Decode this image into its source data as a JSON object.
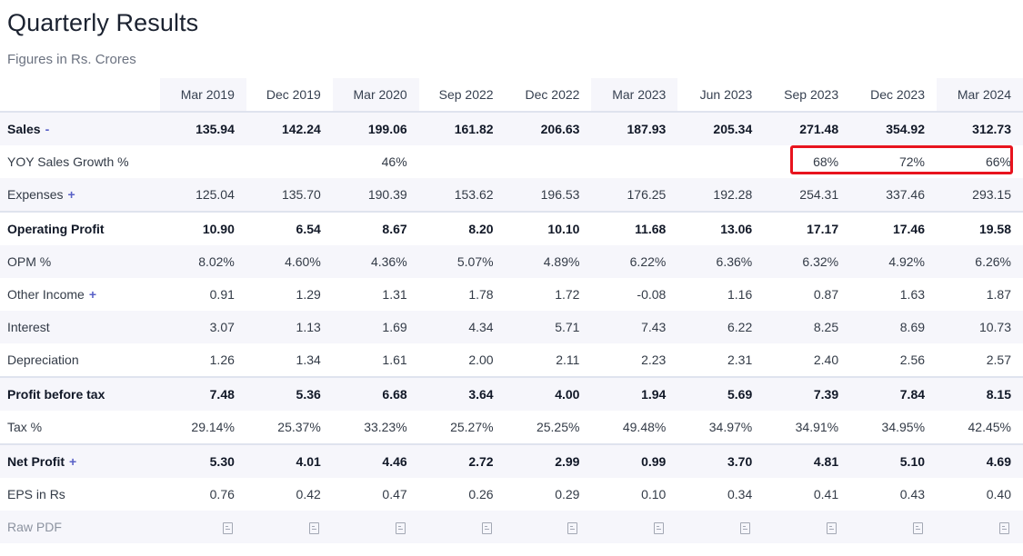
{
  "title": "Quarterly Results",
  "subtitle": "Figures in Rs. Crores",
  "columns": [
    "Mar 2019",
    "Dec 2019",
    "Mar 2020",
    "Sep 2022",
    "Dec 2022",
    "Mar 2023",
    "Jun 2023",
    "Sep 2023",
    "Dec 2023",
    "Mar 2024"
  ],
  "rows": {
    "sales": {
      "label": "Sales",
      "toggle": "-",
      "values": [
        "135.94",
        "142.24",
        "199.06",
        "161.82",
        "206.63",
        "187.93",
        "205.34",
        "271.48",
        "354.92",
        "312.73"
      ]
    },
    "yoy": {
      "label": "YOY Sales Growth %",
      "values": [
        "",
        "",
        "46%",
        "",
        "",
        "",
        "",
        "68%",
        "72%",
        "66%"
      ]
    },
    "expenses": {
      "label": "Expenses",
      "toggle": "+",
      "values": [
        "125.04",
        "135.70",
        "190.39",
        "153.62",
        "196.53",
        "176.25",
        "192.28",
        "254.31",
        "337.46",
        "293.15"
      ]
    },
    "op_profit": {
      "label": "Operating Profit",
      "values": [
        "10.90",
        "6.54",
        "8.67",
        "8.20",
        "10.10",
        "11.68",
        "13.06",
        "17.17",
        "17.46",
        "19.58"
      ]
    },
    "opm": {
      "label": "OPM %",
      "values": [
        "8.02%",
        "4.60%",
        "4.36%",
        "5.07%",
        "4.89%",
        "6.22%",
        "6.36%",
        "6.32%",
        "4.92%",
        "6.26%"
      ]
    },
    "other_income": {
      "label": "Other Income",
      "toggle": "+",
      "values": [
        "0.91",
        "1.29",
        "1.31",
        "1.78",
        "1.72",
        "-0.08",
        "1.16",
        "0.87",
        "1.63",
        "1.87"
      ]
    },
    "interest": {
      "label": "Interest",
      "values": [
        "3.07",
        "1.13",
        "1.69",
        "4.34",
        "5.71",
        "7.43",
        "6.22",
        "8.25",
        "8.69",
        "10.73"
      ]
    },
    "depreciation": {
      "label": "Depreciation",
      "values": [
        "1.26",
        "1.34",
        "1.61",
        "2.00",
        "2.11",
        "2.23",
        "2.31",
        "2.40",
        "2.56",
        "2.57"
      ]
    },
    "pbt": {
      "label": "Profit before tax",
      "values": [
        "7.48",
        "5.36",
        "6.68",
        "3.64",
        "4.00",
        "1.94",
        "5.69",
        "7.39",
        "7.84",
        "8.15"
      ]
    },
    "tax": {
      "label": "Tax %",
      "values": [
        "29.14%",
        "25.37%",
        "33.23%",
        "25.27%",
        "25.25%",
        "49.48%",
        "34.97%",
        "34.91%",
        "34.95%",
        "42.45%"
      ]
    },
    "net_profit": {
      "label": "Net Profit",
      "toggle": "+",
      "values": [
        "5.30",
        "4.01",
        "4.46",
        "2.72",
        "2.99",
        "0.99",
        "3.70",
        "4.81",
        "5.10",
        "4.69"
      ]
    },
    "eps": {
      "label": "EPS in Rs",
      "values": [
        "0.76",
        "0.42",
        "0.47",
        "0.26",
        "0.29",
        "0.10",
        "0.34",
        "0.41",
        "0.43",
        "0.40"
      ]
    },
    "raw_pdf": {
      "label": "Raw PDF"
    }
  },
  "icons": {
    "pdf": "pdf-file-icon"
  },
  "colors": {
    "accent": "#5961c7",
    "highlight_box": "#e8141e",
    "stripe": "#f6f6fb"
  }
}
